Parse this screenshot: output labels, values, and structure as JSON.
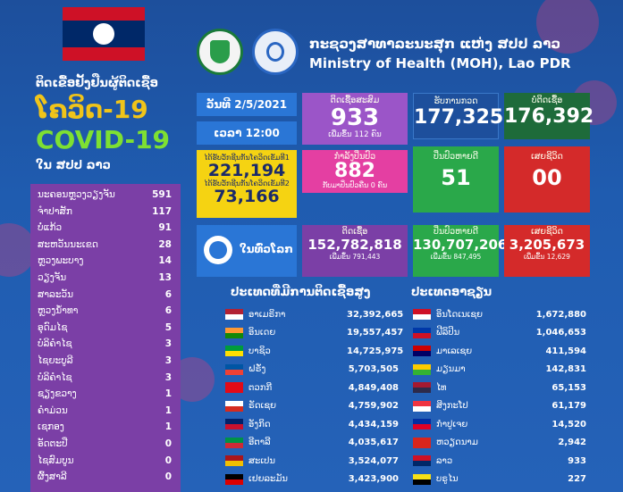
{
  "left": {
    "subtitle": "ຕິດເຂື້ອຢັ້ງຢືນຜູ້ຕິດເຊື້ອ",
    "covid_lao": "ໂຄວິດ-19",
    "covid_en": "COVID-19",
    "country": "ໃນ ສປປ ລາວ",
    "provinces": [
      {
        "name": "ນະຄອນຫຼວງວຽງຈັນ",
        "value": "591"
      },
      {
        "name": "ຈຳປາສັກ",
        "value": "117"
      },
      {
        "name": "ບໍ່ແກ້ວ",
        "value": "91"
      },
      {
        "name": "ສະຫວັນນະເຂດ",
        "value": "28"
      },
      {
        "name": "ຫຼວງພະບາງ",
        "value": "14"
      },
      {
        "name": "ວຽງຈັນ",
        "value": "13"
      },
      {
        "name": "ສາລະວັນ",
        "value": "6"
      },
      {
        "name": "ຫຼວງນ້ຳທາ",
        "value": "6"
      },
      {
        "name": "ອຸດົມໄຊ",
        "value": "5"
      },
      {
        "name": "ບໍລິຄຳໄຊ",
        "value": "3"
      },
      {
        "name": "ໄຊຍະບູລີ",
        "value": "3"
      },
      {
        "name": "ບໍລິຄຳໄຊ",
        "value": "3"
      },
      {
        "name": "ຊຽງຂວາງ",
        "value": "1"
      },
      {
        "name": "ຄຳມ່ວນ",
        "value": "1"
      },
      {
        "name": "ເຊກອງ",
        "value": "1"
      },
      {
        "name": "ອັດຕະປື",
        "value": "0"
      },
      {
        "name": "ໄຊສົມບູນ",
        "value": "0"
      },
      {
        "name": "ຜົ້ງສາລີ",
        "value": "0"
      }
    ]
  },
  "header": {
    "title_lao": "ກະຊວງສາທາລະນະສຸກ ແຫ່ງ ສປປ ລາວ",
    "title_en": "Ministry of Health (MOH), Lao PDR"
  },
  "stats": {
    "date": "ວັນທີ 2/5/2021",
    "time": "ເວລາ 12:00",
    "vax1_label": "ໄດ້ຮັບວັກຊີນກັນໂຄວິດເຂັມທີ1",
    "vax1_value": "221,194",
    "vax2_label": "ໄດ້ຮັບວັກຊີນກັນໂຄວິດເຂັມທີ2",
    "vax2_value": "73,166",
    "cum_label": "ຕິດເຊື້ອສະສົມ",
    "cum_value": "933",
    "cum_sub": "ເພີ່ມຂຶ້ນ 112 ຄົນ",
    "treat_label": "ກຳລັງປິ່ນປົວ",
    "treat_value": "882",
    "treat_sub": "ກັບມາປິ່ນປົວຄືນ 0 ຄົນ",
    "test_label": "ຮັບການກວດ",
    "test_value": "177,325",
    "neg_label": "ບໍ່ຕິດເຊື້ອ",
    "neg_value": "176,392",
    "recov_label": "ປິ່ນປົວຫາຍດີ",
    "recov_value": "51",
    "death_label": "ເສຍຊີວິດ",
    "death_value": "00"
  },
  "world": {
    "label": "ໃນທົ່ວໂລກ",
    "cases_label": "ຕິດເຊື້ອ",
    "cases_value": "152,782,818",
    "cases_sub": "ເພີ່ມຂຶ້ນ 791,443",
    "recov_label": "ປິ່ນປົວຫາຍດີ",
    "recov_value": "130,707,206",
    "recov_sub": "ເພີ່ມຂຶ້ນ 847,495",
    "death_label": "ເສຍຊີວິດ",
    "death_value": "3,205,673",
    "death_sub": "ເພີ່ມຂຶ້ນ 12,629"
  },
  "lists": {
    "world_title": "ປະເທດທີ່ມີການຕິດເຊື້ອສູງ",
    "asean_title": "ປະເທດອາຊຽນ",
    "world": [
      {
        "name": "ອາເມຣິກາ",
        "value": "32,392,665",
        "c1": "#b22234",
        "c2": "#ffffff"
      },
      {
        "name": "ອິນເດຍ",
        "value": "19,557,457",
        "c1": "#ff9933",
        "c2": "#138808"
      },
      {
        "name": "ບາຊິວ",
        "value": "14,725,975",
        "c1": "#009c3b",
        "c2": "#ffdf00"
      },
      {
        "name": "ຝຣັ່ງ",
        "value": "5,703,505",
        "c1": "#0055a4",
        "c2": "#ef4135"
      },
      {
        "name": "ຕວກກີ",
        "value": "4,849,408",
        "c1": "#e30a17",
        "c2": "#e30a17"
      },
      {
        "name": "ຣັດເຊຍ",
        "value": "4,759,902",
        "c1": "#ffffff",
        "c2": "#d52b1e"
      },
      {
        "name": "ອັງກິດ",
        "value": "4,434,159",
        "c1": "#012169",
        "c2": "#c8102e"
      },
      {
        "name": "ອີຕາລີ",
        "value": "4,035,617",
        "c1": "#009246",
        "c2": "#ce2b37"
      },
      {
        "name": "ສະເປນ",
        "value": "3,524,077",
        "c1": "#aa151b",
        "c2": "#f1bf00"
      },
      {
        "name": "ເຢຍລະມັນ",
        "value": "3,423,900",
        "c1": "#000000",
        "c2": "#dd0000"
      }
    ],
    "asean": [
      {
        "name": "ອິນໂດເນເຊຍ",
        "value": "1,672,880",
        "c1": "#ce1126",
        "c2": "#ffffff"
      },
      {
        "name": "ຟີລິປິນ",
        "value": "1,046,653",
        "c1": "#0038a8",
        "c2": "#ce1126"
      },
      {
        "name": "ມາເລເຊຍ",
        "value": "411,594",
        "c1": "#cc0001",
        "c2": "#010066"
      },
      {
        "name": "ມຽນມາ",
        "value": "142,831",
        "c1": "#fecb00",
        "c2": "#34b233"
      },
      {
        "name": "ໄທ",
        "value": "65,153",
        "c1": "#a51931",
        "c2": "#2d2a4a"
      },
      {
        "name": "ສິງກະໂປ",
        "value": "61,179",
        "c1": "#ef3340",
        "c2": "#ffffff"
      },
      {
        "name": "ກຳປູເຈຍ",
        "value": "14,520",
        "c1": "#032ea1",
        "c2": "#e00025"
      },
      {
        "name": "ຫວຽດນາມ",
        "value": "2,942",
        "c1": "#da251d",
        "c2": "#da251d"
      },
      {
        "name": "ລາວ",
        "value": "933",
        "c1": "#ce1126",
        "c2": "#002868"
      },
      {
        "name": "ບຣູໄນ",
        "value": "227",
        "c1": "#f7e017",
        "c2": "#000000"
      }
    ]
  }
}
